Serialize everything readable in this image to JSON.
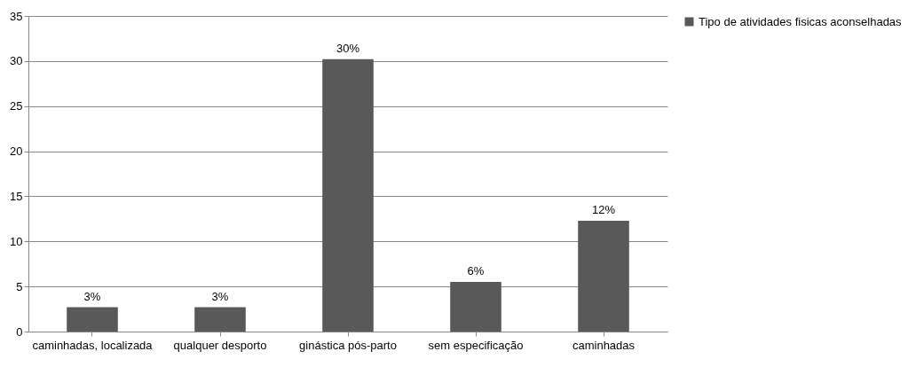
{
  "chart_data": {
    "type": "bar",
    "categories": [
      "caminhadas, localizada",
      "qualquer desporto",
      "ginástica pós-parto",
      "sem especificação",
      "caminhadas"
    ],
    "series": [
      {
        "name": "Tipo de atividades fisicas aconselhadas",
        "color": "#595959",
        "values": [
          2.7,
          2.7,
          30.2,
          5.5,
          12.3
        ],
        "value_labels": [
          "3%",
          "3%",
          "30%",
          "6%",
          "12%"
        ]
      }
    ],
    "ylim": [
      0,
      35
    ],
    "yticks": [
      0,
      5,
      10,
      15,
      20,
      25,
      30,
      35
    ],
    "grid": "y",
    "legend": "right"
  }
}
